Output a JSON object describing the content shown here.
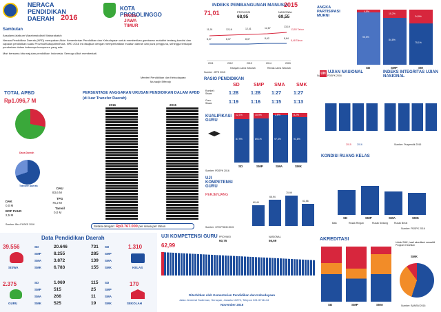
{
  "header": {
    "title_line1": "NERACA",
    "title_line2": "PENDIDIKAN",
    "title_line3": "DAERAH",
    "year": "2016",
    "region": "KOTA PROBOLINGGO",
    "province": "PROV. JAWA TIMUR"
  },
  "sambutan": {
    "title": "Sambutan",
    "greeting": "Assalamu'alaikum Warahmatullahi Wabarakatuh",
    "body": "Neraca Pendidikan Daerah (NPD) merupakan Aktor Kementerian Pendidikan dan Kebudayaan untuk memberikan gambaran mutakhir tentang kondisi dan capaian pendidikan suatu Provinsi/Kabupaten/Kota. NPD 2016 ini disajikan dengan memperhatikan muatan daerah dan para pengguna, sehingga terdapat perubahan dalam beberapa komponen yang ada.",
    "closing": "Mari bersama kita majukan pendidikan Indonesia. Semoga Allah memberkati.",
    "signer_title": "Menteri Pendidikan dan Kebudayaan",
    "signer": "Muhadjir Effendy"
  },
  "ipm": {
    "title": "INDEKS PEMBANGUNAN MANUSIA",
    "year": "2015",
    "local": "71,01",
    "provinsi_label": "PROVINSI",
    "provinsi_value": "68,95",
    "nasional_label": "NASIONAL",
    "nasional_value": "69,55",
    "top_values": [
      "11,91",
      "12,16",
      "12,41",
      "12,67",
      "13,19"
    ],
    "bottom_values": [
      "8,37",
      "8,37",
      "8,37",
      "8,62",
      "8,64"
    ],
    "years": [
      "2011",
      "2012",
      "2013",
      "2014",
      "2015"
    ],
    "right_top": "13,53 Tahun",
    "right_bottom": "8,48 Tahun",
    "legend_a": "Harapan Lama Sekolah",
    "legend_b": "Rerata Lama Sekolah",
    "source": "Sumber : BPS 2015"
  },
  "apm": {
    "title": "ANGKA PARTISIPASI MURNI",
    "columns": [
      "SD",
      "SMP",
      "SM"
    ],
    "top": [
      "4,5%",
      "15,2%",
      "24,9%"
    ],
    "bottom": [
      "95,5%",
      "84,8%",
      "75,1%"
    ],
    "source": "Sumber : PDSPK 2016"
  },
  "total_apbd": {
    "title": "TOTAL APBD",
    "value": "Rp1.096,7 M",
    "dana_daerah": "Dana Daerah",
    "transfer": "Transfer Daerah",
    "dak_label": "DAK",
    "dak_value": "0,0 M",
    "bop_label": "BOP PAUD",
    "bop_value": "2,5 M",
    "dau_label": "DAU",
    "dau_value": "83,6 M",
    "tpg_label": "TPG",
    "tpg_value": "76,2 M",
    "tamsil_label": "Tamsil",
    "tamsil_value": "0,0 M",
    "source": "Sumber: Biro PUSKS 2016"
  },
  "persentase": {
    "title": "PERSENTASE ANGGARAN URUSAN PENDIDIKAN DALAM APBD",
    "subtitle": "(di luar Transfer Daerah)",
    "col_a": "2016",
    "col_b": "2015",
    "footer_label": "Setara dengan:",
    "footer_value": "Rp3.767.000",
    "footer_suffix": "per siswa per tahun"
  },
  "rasio": {
    "title": "RASIO PENDIDIKAN",
    "row1_label": "Rombel : Siswa",
    "row2_label": "Guru : Siswa",
    "cols": [
      "SD",
      "SMP",
      "SMA",
      "SMK"
    ],
    "row1": [
      "1:28",
      "1:28",
      "1:27",
      "1:27"
    ],
    "row2": [
      "1:19",
      "1:16",
      "1:15",
      "1:13"
    ]
  },
  "ujian": {
    "title": "UJIAN NASIONAL",
    "title2": "INDEKS INTEGRITAS UJIAN NASIONAL",
    "source": "Sumber: Puspendik 2016",
    "legend_2015": "2015",
    "legend_2016": "2016"
  },
  "kualifikasi": {
    "title": "KUALIFIKASI GURU",
    "cols": [
      "SD",
      "SMP",
      "SMA",
      "SMK"
    ],
    "top": [
      "12,1%",
      "10,9%",
      "2,6%",
      "8,2%"
    ],
    "bottom": [
      "87,9%",
      "89,1%",
      "97,4%",
      "91,8%"
    ],
    "source": "Sumber: PDSPK 2016"
  },
  "ukg": {
    "title": "UJI KOMPETENSI GURU",
    "subtitle": "PERJENJANG",
    "values": [
      "60,49",
      "66,94",
      "70,99",
      "62,66"
    ],
    "cols": [
      "SD",
      "SMP",
      "SMA",
      "SMK"
    ],
    "source": "Sumber: GTK/PSDM 2015"
  },
  "kondisi": {
    "title": "KONDISI RUANG KELAS",
    "cols": [
      "SD",
      "SMP",
      "SMA",
      "SMK"
    ],
    "legend": [
      "Baik",
      "Rusak Ringan",
      "Rusak Sedang",
      "Rusak Berat"
    ],
    "source": "Sumber: PDSPK 2016"
  },
  "data_pendidikan": {
    "title": "Data Pendidikan Daerah",
    "siswa_total": "39.556",
    "siswa_label": "SISWA",
    "siswa_sd": "20.646",
    "siswa_smp": "8.255",
    "siswa_sma": "3.872",
    "siswa_smk": "6.783",
    "kelas_total": "1.310",
    "kelas_label": "KELAS",
    "kelas_sd": "731",
    "kelas_smp": "285",
    "kelas_sma": "139",
    "kelas_smk": "155",
    "guru_total": "2.375",
    "guru_label": "GURU",
    "guru_sd": "1.069",
    "guru_smp": "515",
    "guru_sma": "266",
    "guru_smk": "525",
    "sekolah_total": "170",
    "sekolah_label": "SEKOLAH",
    "sekolah_sd": "115",
    "sekolah_smp": "25",
    "sekolah_sma": "11",
    "sekolah_smk": "19",
    "lbl_sd": "SD",
    "lbl_smp": "SMP",
    "lbl_sma": "SMA",
    "lbl_smk": "SMK"
  },
  "ukg_nasional": {
    "title": "UJI KOMPETENSI GURU",
    "local": "62,99",
    "provinsi_label": "PROVINSI",
    "provinsi_value": "60,75",
    "nasional_label": "NASIONAL",
    "nasional_value": "56,69",
    "footer1": "Diterbitkan oleh Kementerian Pendidikan dan Kebudayaan",
    "footer2": "Jalan Jenderal Sudirman, Senayan, Jakarta 10270, Telepon 021-5711144",
    "footer3": "November 2016"
  },
  "akreditasi": {
    "title": "AKREDITASI",
    "note": "Untuk SMK, hasil akreditasi mewakili Program Keahlian",
    "smk_label": "SMK",
    "source": "Sumber: BANSM 2016",
    "cols": [
      "SD",
      "SMP",
      "SMA"
    ]
  },
  "colors": {
    "primary": "#1f4e9c",
    "accent": "#d7263d",
    "green": "#3aa83a",
    "orange": "#f28c28"
  }
}
